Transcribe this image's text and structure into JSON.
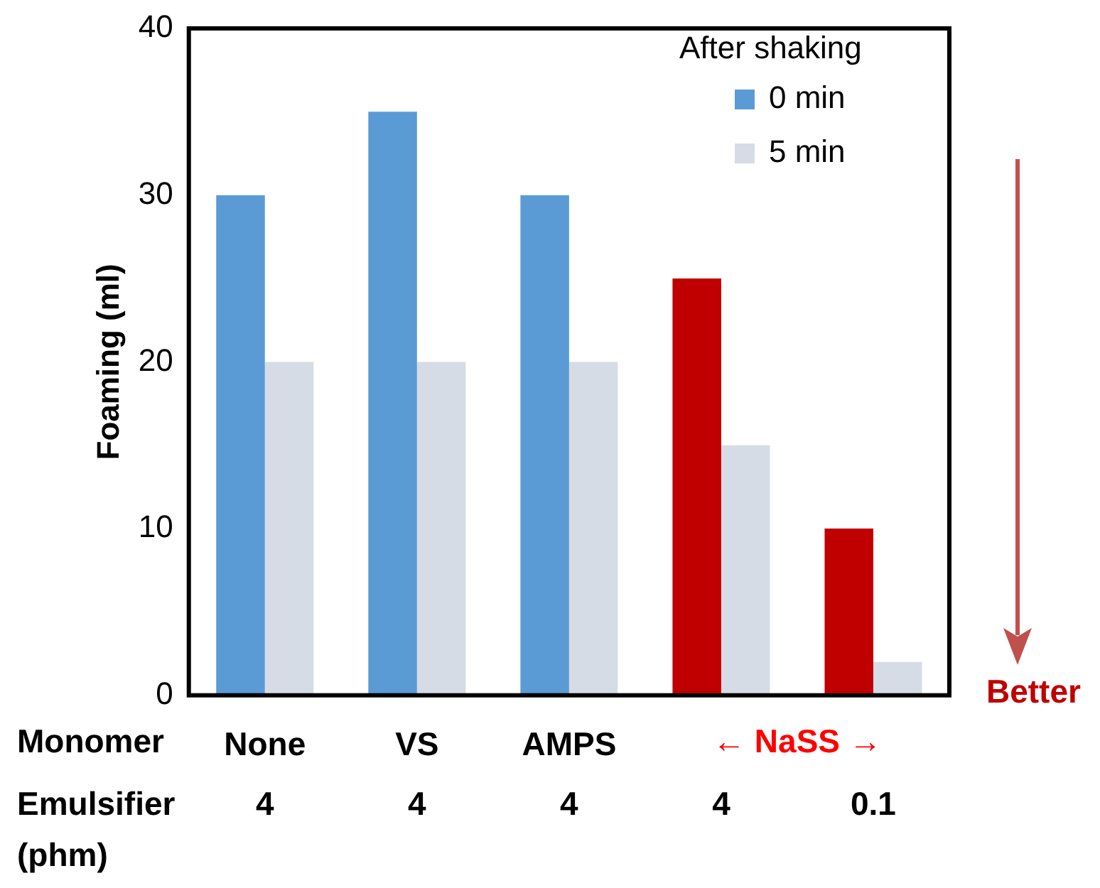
{
  "chart_data": {
    "type": "bar",
    "ylabel": "Foaming (ml)",
    "categories": [
      "None",
      "VS",
      "AMPS",
      null,
      null
    ],
    "series": [
      {
        "name": "0 min",
        "colors": [
          "#5b9bd5",
          "#5b9bd5",
          "#5b9bd5",
          "#c00000",
          "#c00000"
        ],
        "values": [
          30,
          35,
          30,
          25,
          10
        ]
      },
      {
        "name": "5 min",
        "color": "#d6dce5",
        "values": [
          20,
          20,
          20,
          15,
          2
        ]
      }
    ],
    "legend_title": "After shaking",
    "legend": "top right",
    "ylim": [
      0,
      40
    ],
    "yticks": [
      0,
      10,
      20,
      30,
      40
    ],
    "grid": false,
    "annotations": [
      "Better",
      "Monomer",
      "← NaSS →",
      "Emulsifier\n(phm)",
      "4",
      "4",
      "4",
      "4",
      "0.1"
    ]
  }
}
